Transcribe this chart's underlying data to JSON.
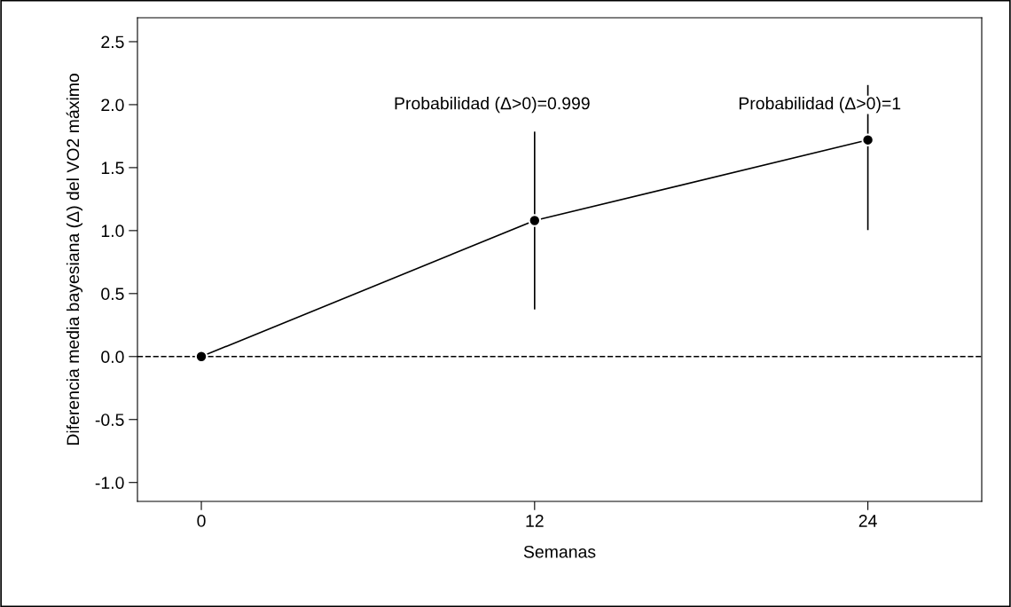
{
  "chart_data": {
    "type": "line",
    "xlabel": "Semanas",
    "ylabel": "Diferencia media bayesiana (Δ) del VO2 máximo",
    "x": [
      0,
      12,
      24
    ],
    "series": [
      {
        "color": "#000000",
        "values": [
          0,
          1.08,
          1.72
        ],
        "errors": [
          null,
          [
            0.38,
            1.78
          ],
          [
            1.01,
            2.15
          ]
        ]
      }
    ],
    "marker": "circle",
    "line_style": "solid",
    "xlim": [
      -2.3,
      28.1
    ],
    "xticks": [
      0,
      12,
      24
    ],
    "ylim": [
      -1.15,
      2.69
    ],
    "yticks": [
      {
        "value": -1.0,
        "label": "-1.0"
      },
      {
        "value": -0.5,
        "label": "-0.5"
      },
      {
        "value": 0.0,
        "label": "0.0"
      },
      {
        "value": 0.5,
        "label": "0.5"
      },
      {
        "value": 1.0,
        "label": "1.0"
      },
      {
        "value": 1.5,
        "label": "1.5"
      },
      {
        "value": 2.0,
        "label": "2.0"
      },
      {
        "value": 2.5,
        "label": "2.5"
      }
    ],
    "ref_lines": [
      {
        "axis": "y",
        "value": 0,
        "line_style": "dashed",
        "color": "#000000"
      }
    ],
    "annotations": [
      "Probabilidad (Δ>0)=0.999",
      "Probabilidad (Δ>0)=1"
    ],
    "grid": false,
    "legend": false
  }
}
